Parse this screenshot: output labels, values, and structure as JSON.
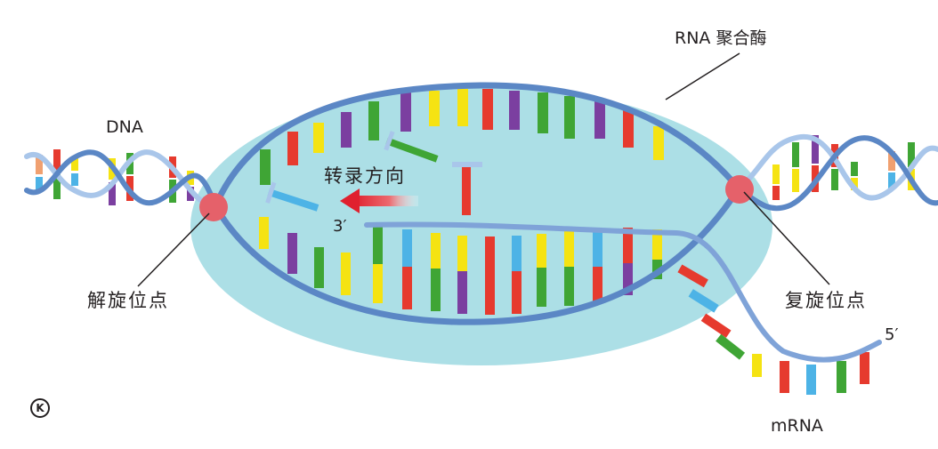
{
  "labels": {
    "dna": "DNA",
    "rna_polymerase": "RNA 聚合酶",
    "direction": "转录方向",
    "three_prime": "3′",
    "unwinding_point": "解旋位点",
    "rewinding_point": "复旋位点",
    "five_prime": "5′",
    "mrna": "mRNA",
    "publisher_mark": "K"
  },
  "colors": {
    "bubble": "#acdfe6",
    "strand": "#5b87c5",
    "strand_light": "#a9c6ea",
    "point": "#e5616a",
    "arrow": "#e0202e",
    "base_red": "#e63a2e",
    "base_green": "#3fa535",
    "base_yellow": "#f5e312",
    "base_purple": "#7b3fa0",
    "base_blue": "#4db3e6"
  }
}
